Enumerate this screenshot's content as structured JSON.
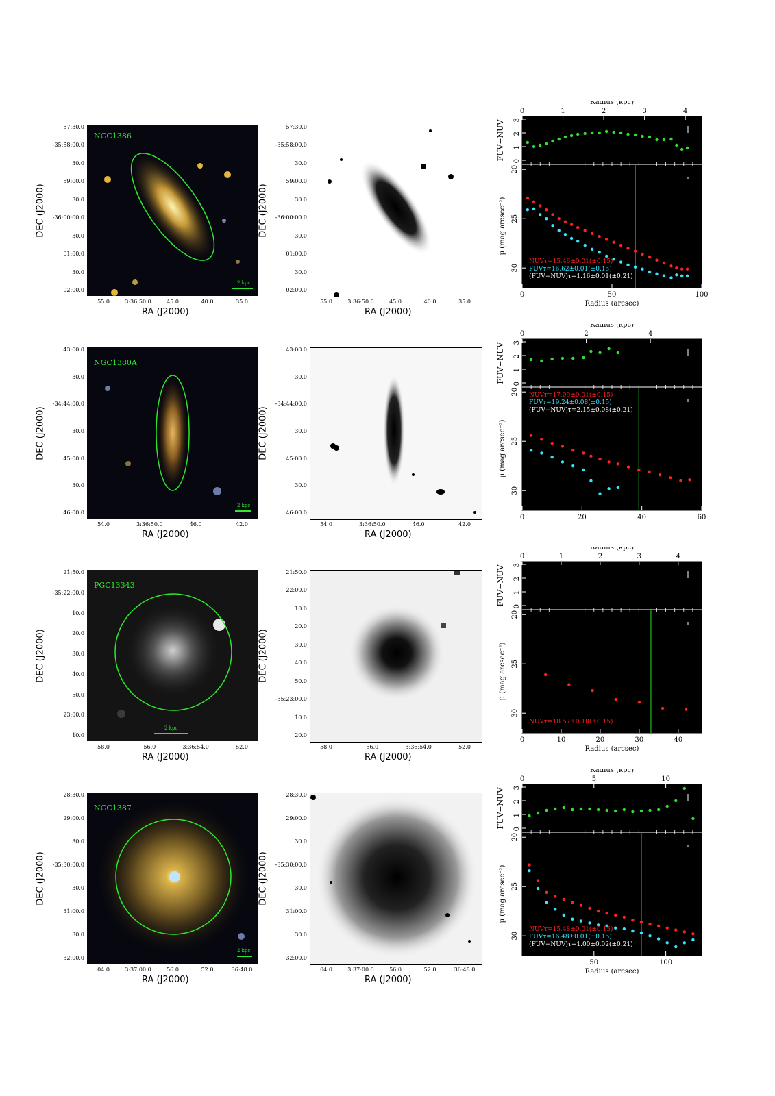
{
  "axis_labels": {
    "ra": "RA (J2000)",
    "dec": "DEC (J2000)"
  },
  "rows": [
    {
      "galaxy": "NGC1386",
      "dec_ticks": [
        "57:30.0",
        "-35:58:00.0",
        "30.0",
        "59:00.0",
        "30.0",
        "-36:00:00.0",
        "30.0",
        "01:00.0",
        "30.0",
        "02:00.0"
      ],
      "ra_ticks": [
        "55.0",
        "3:36:50.0",
        "45.0",
        "40.0",
        "35.0"
      ],
      "scale": "2 kpc",
      "color_profile": true,
      "chart_data": {
        "type": "scatter",
        "top_xlabel": "Radius (kpc)",
        "top_xticks": [
          "0",
          "1",
          "2",
          "3",
          "4"
        ],
        "kpc_max": 4.4,
        "xlabel": "Radius (arcsec)",
        "xticks": [
          "0",
          "50",
          "100"
        ],
        "xlim": [
          0,
          100
        ],
        "color_ylabel": "FUV−NUV",
        "color_yticks": [
          "0",
          "1",
          "2",
          "3"
        ],
        "color_ylim": [
          -0.3,
          3.2
        ],
        "mu_ylabel": "μ (mag arcsec⁻²)",
        "mu_yticks": [
          "20",
          "25",
          "30"
        ],
        "mu_ylim": [
          32,
          19.5
        ],
        "vline_x": 63,
        "color_points": [
          [
            3,
            1.3
          ],
          [
            6.5,
            1.0
          ],
          [
            10,
            1.1
          ],
          [
            13.5,
            1.2
          ],
          [
            17,
            1.4
          ],
          [
            20.5,
            1.55
          ],
          [
            24,
            1.7
          ],
          [
            27.5,
            1.8
          ],
          [
            31,
            1.9
          ],
          [
            35,
            1.95
          ],
          [
            39,
            2.0
          ],
          [
            43,
            2.0
          ],
          [
            47,
            2.1
          ],
          [
            51,
            2.05
          ],
          [
            55,
            2.0
          ],
          [
            59,
            1.9
          ],
          [
            63,
            1.85
          ],
          [
            67,
            1.75
          ],
          [
            71,
            1.7
          ],
          [
            75,
            1.5
          ],
          [
            79,
            1.5
          ],
          [
            83,
            1.55
          ],
          [
            86,
            1.1
          ],
          [
            89,
            0.8
          ],
          [
            92,
            0.9
          ]
        ],
        "nuv_points": [
          [
            3,
            22.9
          ],
          [
            6.5,
            23.3
          ],
          [
            10,
            23.7
          ],
          [
            13.5,
            24.1
          ],
          [
            17,
            24.6
          ],
          [
            20.5,
            25.0
          ],
          [
            24,
            25.3
          ],
          [
            27.5,
            25.6
          ],
          [
            31,
            25.9
          ],
          [
            35,
            26.2
          ],
          [
            39,
            26.5
          ],
          [
            43,
            26.8
          ],
          [
            47,
            27.1
          ],
          [
            51,
            27.4
          ],
          [
            55,
            27.7
          ],
          [
            59,
            28.0
          ],
          [
            63,
            28.3
          ],
          [
            67,
            28.6
          ],
          [
            71,
            28.9
          ],
          [
            75,
            29.2
          ],
          [
            79,
            29.5
          ],
          [
            83,
            29.8
          ],
          [
            86,
            30.0
          ],
          [
            89,
            30.1
          ],
          [
            92,
            30.1
          ]
        ],
        "fuv_points": [
          [
            3,
            24.1
          ],
          [
            6.5,
            24.0
          ],
          [
            10,
            24.6
          ],
          [
            13.5,
            25.0
          ],
          [
            17,
            25.7
          ],
          [
            20.5,
            26.2
          ],
          [
            24,
            26.6
          ],
          [
            27.5,
            27.0
          ],
          [
            31,
            27.3
          ],
          [
            35,
            27.7
          ],
          [
            39,
            28.1
          ],
          [
            43,
            28.4
          ],
          [
            47,
            28.8
          ],
          [
            51,
            29.1
          ],
          [
            55,
            29.4
          ],
          [
            59,
            29.7
          ],
          [
            63,
            29.9
          ],
          [
            67,
            30.1
          ],
          [
            71,
            30.4
          ],
          [
            75,
            30.6
          ],
          [
            79,
            30.8
          ],
          [
            83,
            31.0
          ],
          [
            86,
            30.7
          ],
          [
            89,
            30.8
          ],
          [
            92,
            30.8
          ]
        ],
        "legend": [
          {
            "text": "NUVᴛ=15.46±0.01(±0.15)",
            "color": "#ff2020"
          },
          {
            "text": "FUVᴛ=16.62±0.01(±0.15)",
            "color": "#33e5ff"
          },
          {
            "text": "(FUV−NUV)ᴛ=1.16±0.01(±0.21)",
            "color": "#ffffff"
          }
        ]
      }
    },
    {
      "galaxy": "NGC1380A",
      "dec_ticks": [
        "43:00.0",
        "30.0",
        "-34:44:00.0",
        "30.0",
        "45:00.0",
        "30.0",
        "46:00.0"
      ],
      "ra_ticks": [
        "54.0",
        "3:36:50.0",
        "46.0",
        "42.0"
      ],
      "scale": "2 kpc",
      "color_profile": true,
      "chart_data": {
        "type": "scatter",
        "top_xlabel": "Radius (kpc)",
        "top_xticks": [
          "0",
          "2",
          "4"
        ],
        "kpc_max": 5.6,
        "xlabel": "",
        "xticks": [
          "0",
          "20",
          "40",
          "60"
        ],
        "xlim": [
          0,
          60
        ],
        "color_ylabel": "FUV−NUV",
        "color_yticks": [
          "0",
          "1",
          "2",
          "3"
        ],
        "color_ylim": [
          -0.3,
          3.2
        ],
        "mu_ylabel": "μ (mag arcsec⁻²)",
        "mu_yticks": [
          "20",
          "25",
          "30"
        ],
        "mu_ylim": [
          32,
          19.5
        ],
        "vline_x": 39,
        "color_points": [
          [
            3,
            1.7
          ],
          [
            6.5,
            1.6
          ],
          [
            10,
            1.75
          ],
          [
            13.5,
            1.8
          ],
          [
            17,
            1.8
          ],
          [
            20.5,
            1.85
          ],
          [
            23,
            2.3
          ],
          [
            26,
            2.2
          ],
          [
            29,
            2.5
          ],
          [
            32,
            2.2
          ]
        ],
        "nuv_points": [
          [
            3,
            24.4
          ],
          [
            6.5,
            24.8
          ],
          [
            10,
            25.2
          ],
          [
            13.5,
            25.5
          ],
          [
            17,
            25.9
          ],
          [
            20.5,
            26.2
          ],
          [
            23,
            26.5
          ],
          [
            26,
            26.8
          ],
          [
            29,
            27.1
          ],
          [
            32,
            27.3
          ],
          [
            35.5,
            27.6
          ],
          [
            39,
            27.9
          ],
          [
            42.5,
            28.1
          ],
          [
            46,
            28.4
          ],
          [
            49.5,
            28.7
          ],
          [
            53,
            29.0
          ],
          [
            56,
            28.9
          ]
        ],
        "fuv_points": [
          [
            3,
            25.9
          ],
          [
            6.5,
            26.2
          ],
          [
            10,
            26.6
          ],
          [
            13.5,
            27.1
          ],
          [
            17,
            27.5
          ],
          [
            20.5,
            27.9
          ],
          [
            23,
            29.0
          ],
          [
            26,
            30.3
          ],
          [
            29,
            29.8
          ],
          [
            32,
            29.7
          ]
        ],
        "legend": [
          {
            "text": "NUVᴛ=17.09±0.01(±0.15)",
            "color": "#ff2020"
          },
          {
            "text": "FUVᴛ=19.24±0.08(±0.15)",
            "color": "#33e5ff"
          },
          {
            "text": "(FUV−NUV)ᴛ=2.15±0.08(±0.21)",
            "color": "#ffffff"
          }
        ]
      }
    },
    {
      "galaxy": "PGC13343",
      "dec_ticks": [
        "21:50.0",
        "-35:22:00.0",
        "10.0",
        "20.0",
        "30.0",
        "40.0",
        "50.0",
        "23:00.0",
        "10.0"
      ],
      "dec_ticks_gray": [
        "21:50.0",
        "22:00.0",
        "10.0",
        "20.0",
        "30.0",
        "40.0",
        "50.0",
        "-35:23:00.0",
        "10.0",
        "20.0"
      ],
      "ra_ticks": [
        "58.0",
        "56.0",
        "3:36:54.0",
        "52.0"
      ],
      "scale": "2 kpc",
      "color_profile": false,
      "chart_data": {
        "type": "scatter",
        "top_xlabel": "Radius (kpc)",
        "top_xticks": [
          "0",
          "1",
          "2",
          "3",
          "4"
        ],
        "kpc_max": 4.6,
        "xlabel": "Radius (arcsec)",
        "xticks": [
          "0",
          "10",
          "20",
          "30",
          "40"
        ],
        "xlim": [
          0,
          46
        ],
        "color_ylabel": "FUV−NUV",
        "color_yticks": [
          "0",
          "1",
          "2",
          "3"
        ],
        "color_ylim": [
          -0.3,
          3.2
        ],
        "mu_ylabel": "μ (mag arcsec⁻²)",
        "mu_yticks": [
          "20",
          "25",
          "30"
        ],
        "mu_ylim": [
          32,
          19.5
        ],
        "vline_x": 33,
        "color_points": [],
        "nuv_points": [
          [
            6,
            26.1
          ],
          [
            12,
            27.1
          ],
          [
            18,
            27.7
          ],
          [
            24,
            28.6
          ],
          [
            30,
            28.9
          ],
          [
            36,
            29.5
          ],
          [
            42,
            29.6
          ]
        ],
        "fuv_points": [],
        "legend": [
          {
            "text": "NUVᴛ=18.57±0.10(±0.15)",
            "color": "#ff2020"
          }
        ]
      }
    },
    {
      "galaxy": "NGC1387",
      "dec_ticks": [
        "28:30.0",
        "29:00.0",
        "30.0",
        "-35:30:00.0",
        "30.0",
        "31:00.0",
        "30.0",
        "32:00.0"
      ],
      "ra_ticks": [
        "04.0",
        "3:37:00.0",
        "56.0",
        "52.0",
        "36:48.0"
      ],
      "scale": "2 kpc",
      "color_profile": true,
      "chart_data": {
        "type": "scatter",
        "top_xlabel": "Radius (kpc)",
        "top_xticks": [
          "0",
          "5",
          "10"
        ],
        "kpc_max": 12.5,
        "xlabel": "Radius (arcsec)",
        "xticks": [
          "50",
          "100"
        ],
        "xtick_vals": [
          50,
          100
        ],
        "xlim": [
          0,
          125
        ],
        "color_ylabel": "FUV−NUV",
        "color_yticks": [
          "0",
          "1",
          "2",
          "3"
        ],
        "color_ylim": [
          -0.3,
          3.2
        ],
        "mu_ylabel": "μ (mag arcsec⁻²)",
        "mu_yticks": [
          "20",
          "25",
          "30"
        ],
        "mu_ylim": [
          32,
          19.5
        ],
        "vline_x": 83,
        "color_points": [
          [
            5,
            0.9
          ],
          [
            11,
            1.1
          ],
          [
            17,
            1.3
          ],
          [
            23,
            1.4
          ],
          [
            29,
            1.5
          ],
          [
            35,
            1.35
          ],
          [
            41,
            1.4
          ],
          [
            47,
            1.4
          ],
          [
            53,
            1.35
          ],
          [
            59,
            1.3
          ],
          [
            65,
            1.25
          ],
          [
            71,
            1.35
          ],
          [
            77,
            1.2
          ],
          [
            83,
            1.25
          ],
          [
            89,
            1.3
          ],
          [
            95,
            1.35
          ],
          [
            101,
            1.6
          ],
          [
            107,
            2.0
          ],
          [
            113,
            2.9
          ],
          [
            119,
            0.7
          ]
        ],
        "nuv_points": [
          [
            5,
            22.8
          ],
          [
            11,
            24.4
          ],
          [
            17,
            25.6
          ],
          [
            23,
            26.0
          ],
          [
            29,
            26.3
          ],
          [
            35,
            26.6
          ],
          [
            41,
            26.9
          ],
          [
            47,
            27.2
          ],
          [
            53,
            27.5
          ],
          [
            59,
            27.7
          ],
          [
            65,
            27.9
          ],
          [
            71,
            28.1
          ],
          [
            77,
            28.4
          ],
          [
            83,
            28.6
          ],
          [
            89,
            28.8
          ],
          [
            95,
            29.0
          ],
          [
            101,
            29.2
          ],
          [
            107,
            29.4
          ],
          [
            113,
            29.6
          ],
          [
            119,
            29.8
          ]
        ],
        "fuv_points": [
          [
            5,
            23.4
          ],
          [
            11,
            25.2
          ],
          [
            17,
            26.6
          ],
          [
            23,
            27.3
          ],
          [
            29,
            27.9
          ],
          [
            35,
            28.3
          ],
          [
            41,
            28.5
          ],
          [
            47,
            28.7
          ],
          [
            53,
            28.9
          ],
          [
            59,
            29.0
          ],
          [
            65,
            29.2
          ],
          [
            71,
            29.3
          ],
          [
            77,
            29.5
          ],
          [
            83,
            29.7
          ],
          [
            89,
            30.0
          ],
          [
            95,
            30.3
          ],
          [
            101,
            30.7
          ],
          [
            107,
            31.1
          ],
          [
            113,
            30.7
          ],
          [
            119,
            30.4
          ]
        ],
        "legend": [
          {
            "text": "NUVᴛ=15.48±0.01(±0.15)",
            "color": "#ff2020"
          },
          {
            "text": "FUVᴛ=16.48±0.01(±0.15)",
            "color": "#33e5ff"
          },
          {
            "text": "(FUV−NUV)ᴛ=1.00±0.02(±0.21)",
            "color": "#ffffff"
          }
        ]
      }
    }
  ]
}
